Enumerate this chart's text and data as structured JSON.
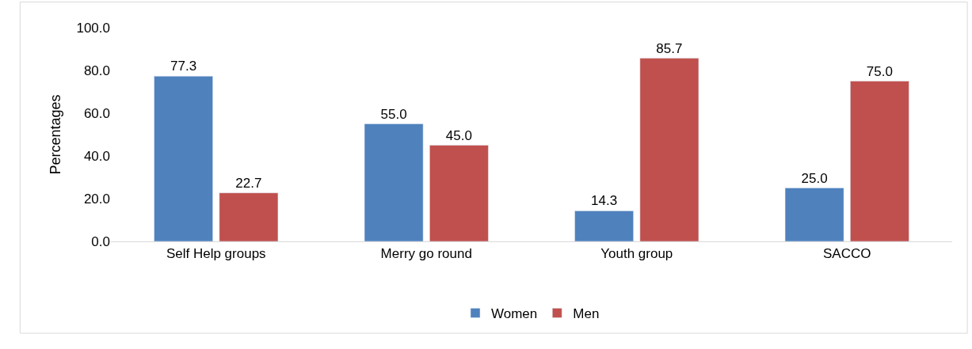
{
  "chart_data": {
    "type": "bar",
    "ylabel": "Percentages",
    "categories": [
      "Self Help groups",
      "Merry go round",
      "Youth group",
      "SACCO"
    ],
    "series": [
      {
        "name": "Women",
        "color": "#4f81bd",
        "values": [
          77.3,
          55.0,
          14.3,
          25.0
        ],
        "value_labels": [
          "77.3",
          "55.0",
          "14.3",
          "25.0"
        ]
      },
      {
        "name": "Men",
        "color": "#c0504d",
        "values": [
          22.7,
          45.0,
          85.7,
          75.0
        ],
        "value_labels": [
          "22.7",
          "45.0",
          "85.7",
          "75.0"
        ]
      }
    ],
    "ylim": [
      0,
      100
    ],
    "yticks": [
      {
        "value": 0,
        "label": "0.0"
      },
      {
        "value": 20,
        "label": "20.0"
      },
      {
        "value": 40,
        "label": "40.0"
      },
      {
        "value": 60,
        "label": "60.0"
      },
      {
        "value": 80,
        "label": "80.0"
      },
      {
        "value": 100,
        "label": "100.0"
      }
    ],
    "grid": false,
    "legend": "bottom"
  }
}
